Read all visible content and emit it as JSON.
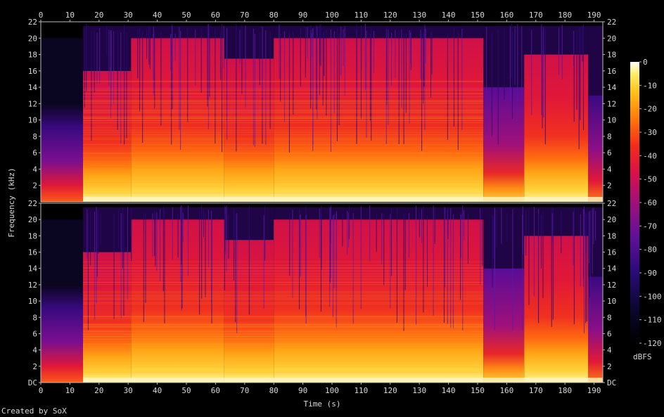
{
  "chart_data": {
    "type": "heatmap",
    "title": "",
    "xlabel": "Time (s)",
    "ylabel": "Frequency (kHz)",
    "xlim": [
      0,
      193
    ],
    "ylim": [
      0,
      22
    ],
    "x_ticks": [
      "0",
      "10",
      "20",
      "30",
      "40",
      "50",
      "60",
      "70",
      "80",
      "90",
      "100",
      "110",
      "120",
      "130",
      "140",
      "150",
      "160",
      "170",
      "180",
      "190"
    ],
    "y_ticks": [
      "DC",
      "2",
      "4",
      "6",
      "8",
      "10",
      "12",
      "14",
      "16",
      "18",
      "20",
      "22"
    ],
    "channels": 2,
    "colorbar": {
      "label": "dBFS",
      "ticks": [
        "0",
        "-10",
        "-20",
        "-30",
        "-40",
        "-50",
        "-60",
        "-70",
        "-80",
        "-90",
        "-100",
        "-110",
        "-120"
      ],
      "range": [
        -120,
        0
      ]
    },
    "segments": [
      {
        "start": 0,
        "end": 14.5,
        "level": "quiet",
        "cutoff_khz": 20
      },
      {
        "start": 14.5,
        "end": 31,
        "level": "loud",
        "cutoff_khz": 16
      },
      {
        "start": 31,
        "end": 63,
        "level": "loud",
        "cutoff_khz": 20
      },
      {
        "start": 63,
        "end": 80,
        "level": "loud",
        "cutoff_khz": 17.5
      },
      {
        "start": 80,
        "end": 152,
        "level": "loud",
        "cutoff_khz": 20
      },
      {
        "start": 152,
        "end": 166,
        "level": "mid",
        "cutoff_khz": 14
      },
      {
        "start": 166,
        "end": 188,
        "level": "loud",
        "cutoff_khz": 18
      },
      {
        "start": 188,
        "end": 193,
        "level": "fade",
        "cutoff_khz": 13
      }
    ]
  },
  "footer": {
    "credit": "Created by SoX"
  }
}
